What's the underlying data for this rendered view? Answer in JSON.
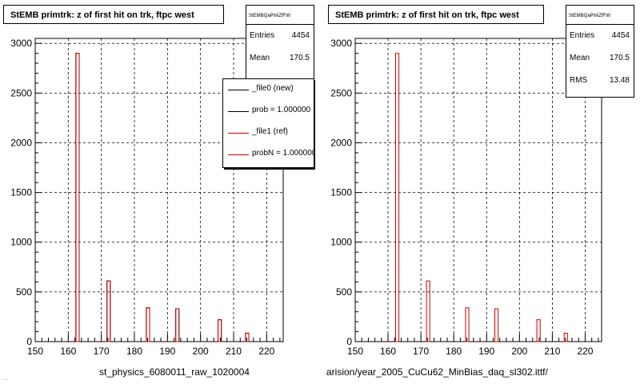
{
  "colors": {
    "new_hist": "#000000",
    "ref_hist": "#cc0000",
    "grid": "#000000"
  },
  "legend": {
    "items": [
      {
        "label": "_file0 (new)",
        "color": "#000000"
      },
      {
        "label": "prob = 1.000000",
        "color": "#000000"
      },
      {
        "label": "_file1 (ref)",
        "color": "#cc0000"
      },
      {
        "label": "probN = 1.000000",
        "color": "#cc0000"
      }
    ]
  },
  "footer_text": "...",
  "chart_data": [
    {
      "type": "bar",
      "title": "StEMB primtrk: z of first hit on trk, ftpc west",
      "stats_name": "StEMBQaPtrkZfFW",
      "stats": [
        {
          "key": "Entries",
          "value": "4454"
        },
        {
          "key": "Mean",
          "value": "170.5"
        }
      ],
      "xlim": [
        150,
        225
      ],
      "ylim": [
        0,
        3050
      ],
      "xticks": [
        "150",
        "160",
        "170",
        "180",
        "190",
        "200",
        "210",
        "220"
      ],
      "yticks": [
        "0",
        "500",
        "1000",
        "1500",
        "2000",
        "2500",
        "3000"
      ],
      "grid": true,
      "xlabel": "st_physics_6080011_raw_1020004",
      "series": [
        {
          "name": "_file0 (new)",
          "color": "#000000",
          "bins": [
            [
              162.3,
              163.3,
              2900
            ],
            [
              171.7,
              172.7,
              610
            ],
            [
              183.6,
              184.6,
              340
            ],
            [
              192.5,
              193.5,
              330
            ],
            [
              205.3,
              206.3,
              220
            ],
            [
              213.6,
              214.6,
              85
            ]
          ]
        },
        {
          "name": "_file1 (ref)",
          "color": "#cc0000",
          "bins": [
            [
              162.3,
              163.3,
              2900
            ],
            [
              171.7,
              172.7,
              610
            ],
            [
              183.6,
              184.6,
              340
            ],
            [
              192.5,
              193.5,
              330
            ],
            [
              205.3,
              206.3,
              220
            ],
            [
              213.6,
              214.6,
              85
            ]
          ]
        }
      ]
    },
    {
      "type": "bar",
      "title": "StEMB primtrk: z of first hit on trk, ftpc west",
      "stats_name": "StEMBQaPtrkZfFW",
      "stats": [
        {
          "key": "Entries",
          "value": "4454"
        },
        {
          "key": "Mean",
          "value": "170.5"
        },
        {
          "key": "RMS",
          "value": "13.48"
        }
      ],
      "xlim": [
        150,
        225
      ],
      "ylim": [
        0,
        3050
      ],
      "xticks": [
        "150",
        "160",
        "170",
        "180",
        "190",
        "200",
        "210",
        "220"
      ],
      "yticks": [
        "0",
        "500",
        "1000",
        "1500",
        "2000",
        "2500",
        "3000"
      ],
      "grid": true,
      "xlabel": "arision/year_2005_CuCu62_MinBias_daq_sl302.ittf/",
      "series": [
        {
          "name": "",
          "color": "#cc0000",
          "bins": [
            [
              162.3,
              163.3,
              2900
            ],
            [
              171.7,
              172.7,
              610
            ],
            [
              183.6,
              184.6,
              340
            ],
            [
              192.5,
              193.5,
              330
            ],
            [
              205.3,
              206.3,
              220
            ],
            [
              213.6,
              214.6,
              85
            ]
          ]
        }
      ]
    }
  ]
}
